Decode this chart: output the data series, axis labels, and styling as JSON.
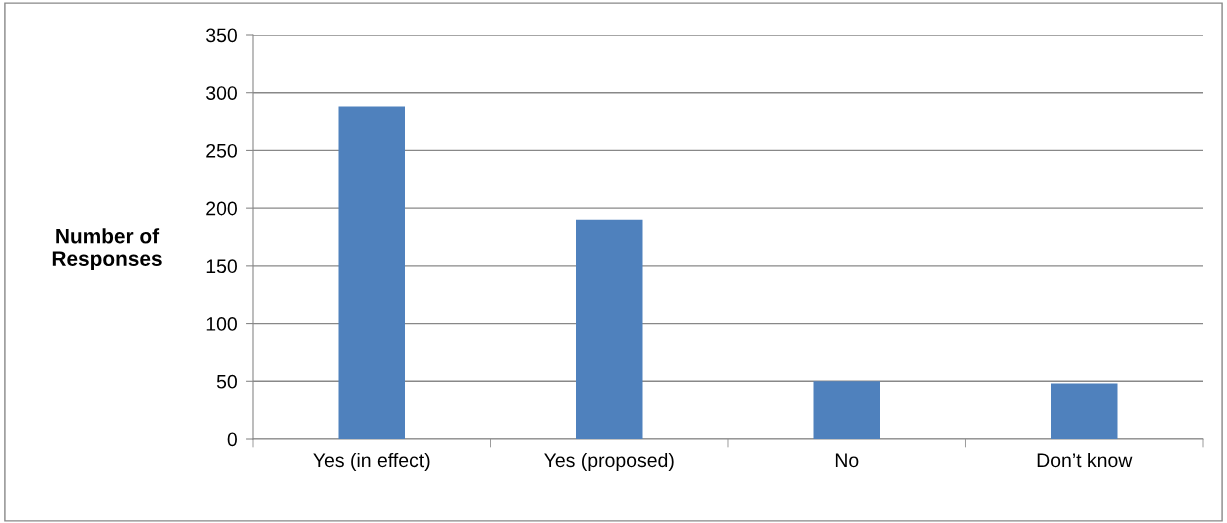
{
  "chart_data": {
    "type": "bar",
    "ylabel": "Number of\nResponses",
    "categories": [
      "Yes (in effect)",
      "Yes (proposed)",
      "No",
      "Don’t know"
    ],
    "values": [
      288,
      190,
      50,
      48
    ],
    "color": "#4f81bd",
    "ylim": [
      0,
      350
    ],
    "yticks": [
      0,
      50,
      100,
      150,
      200,
      250,
      300,
      350
    ],
    "grid": "y",
    "legend": false
  }
}
